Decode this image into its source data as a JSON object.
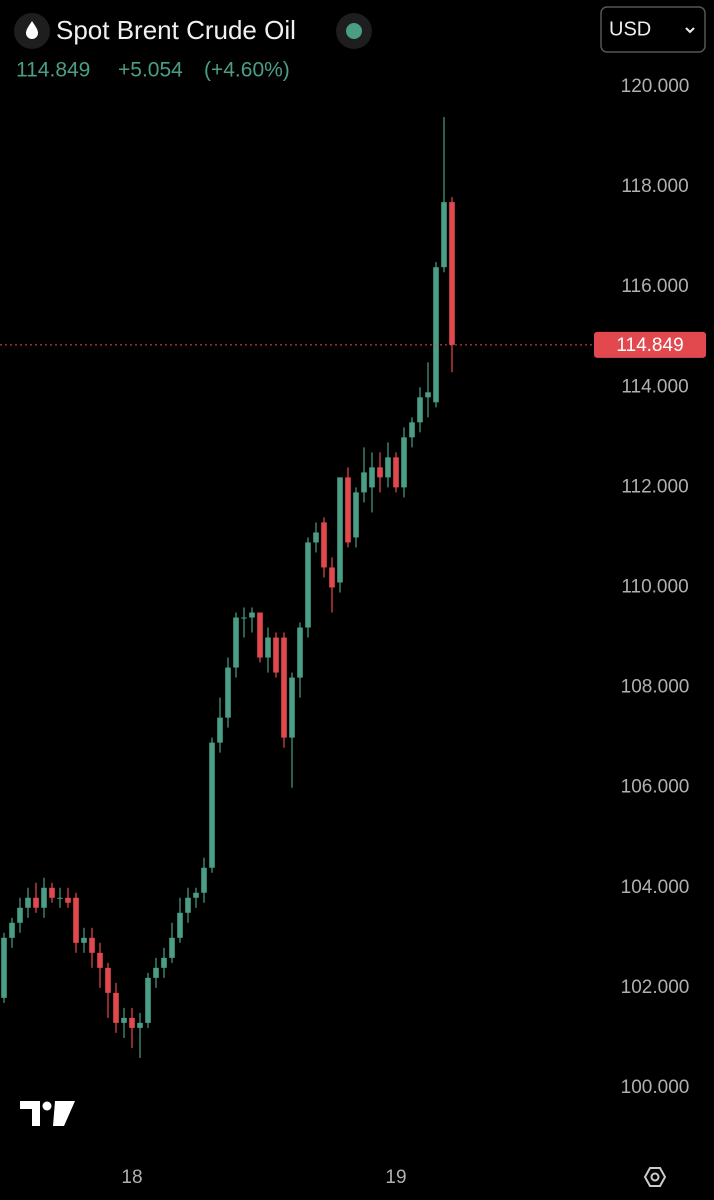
{
  "chart_data": {
    "type": "candlestick",
    "title": "Spot Brent Crude Oil",
    "price": 114.849,
    "change": "+5.054",
    "change_pct": "(+4.60%)",
    "currency": "USD",
    "up_color": "#4a9e86",
    "down_color": "#e2494f",
    "categories": [
      null,
      null,
      null,
      null,
      null,
      null,
      null,
      null,
      null,
      null,
      null,
      null,
      null,
      null,
      null,
      null,
      "18",
      null,
      null,
      null,
      null,
      null,
      null,
      null,
      null,
      null,
      null,
      null,
      null,
      null,
      null,
      null,
      null,
      null,
      null,
      null,
      null,
      null,
      null,
      null,
      null,
      null,
      null,
      null,
      null,
      null,
      null,
      null,
      null,
      "19",
      null,
      null,
      null,
      null,
      null,
      null,
      null
    ],
    "open": [
      101.8,
      103.0,
      103.3,
      103.6,
      103.8,
      103.6,
      104.0,
      103.8,
      103.8,
      103.8,
      102.9,
      103.0,
      102.7,
      102.4,
      101.9,
      101.3,
      101.4,
      101.2,
      101.3,
      102.2,
      102.4,
      102.6,
      103.0,
      103.5,
      103.8,
      103.9,
      104.4,
      106.9,
      107.4,
      108.4,
      109.4,
      109.4,
      109.5,
      108.6,
      109.0,
      109.0,
      107.0,
      108.2,
      109.2,
      110.9,
      111.3,
      110.4,
      110.1,
      112.2,
      111.0,
      111.9,
      112.0,
      112.4,
      112.2,
      112.6,
      112.0,
      113.0,
      113.3,
      113.8,
      113.7,
      116.4,
      117.7
    ],
    "high": [
      103.1,
      103.4,
      103.8,
      104.0,
      104.1,
      104.2,
      104.1,
      104.0,
      104.0,
      103.9,
      103.2,
      103.2,
      102.9,
      102.5,
      102.1,
      101.6,
      101.6,
      101.5,
      102.3,
      102.6,
      102.8,
      103.3,
      103.8,
      104.0,
      104.0,
      104.6,
      107.0,
      107.8,
      108.6,
      109.5,
      109.6,
      109.6,
      109.5,
      109.2,
      109.1,
      109.1,
      108.3,
      109.3,
      111.0,
      111.3,
      111.4,
      110.6,
      112.2,
      112.4,
      112.0,
      112.8,
      112.7,
      112.7,
      112.9,
      112.7,
      113.2,
      113.4,
      114.0,
      114.5,
      116.5,
      119.4,
      117.8
    ],
    "low": [
      101.7,
      102.8,
      103.1,
      103.4,
      103.5,
      103.4,
      103.7,
      103.6,
      103.6,
      102.7,
      102.7,
      102.4,
      102.0,
      101.4,
      101.1,
      101.0,
      100.8,
      100.6,
      101.2,
      102.0,
      102.2,
      102.5,
      102.9,
      103.3,
      103.6,
      103.7,
      104.3,
      106.7,
      107.2,
      108.2,
      109.0,
      109.1,
      108.5,
      108.3,
      108.2,
      106.8,
      106.0,
      107.8,
      109.0,
      110.7,
      110.2,
      109.5,
      109.9,
      110.8,
      110.8,
      111.7,
      111.5,
      111.9,
      112.0,
      111.9,
      111.8,
      112.8,
      113.1,
      113.4,
      113.6,
      116.3,
      114.3
    ],
    "close": [
      103.0,
      103.3,
      103.6,
      103.8,
      103.6,
      104.0,
      103.8,
      103.8,
      103.7,
      102.9,
      103.0,
      102.7,
      102.4,
      101.9,
      101.3,
      101.4,
      101.2,
      101.3,
      102.2,
      102.4,
      102.6,
      103.0,
      103.5,
      103.8,
      103.9,
      104.4,
      106.9,
      107.4,
      108.4,
      109.4,
      109.4,
      109.5,
      108.6,
      109.0,
      108.3,
      107.0,
      108.2,
      109.2,
      110.9,
      111.1,
      110.4,
      110.0,
      112.2,
      110.9,
      111.9,
      112.3,
      112.4,
      112.2,
      112.6,
      112.0,
      113.0,
      113.3,
      113.8,
      113.9,
      116.4,
      117.7,
      114.849
    ],
    "ylim": [
      98.96,
      120.54
    ],
    "yticks": [
      {
        "value": 100,
        "label": "100.000"
      },
      {
        "value": 102,
        "label": "102.000"
      },
      {
        "value": 104,
        "label": "104.000"
      },
      {
        "value": 106,
        "label": "106.000"
      },
      {
        "value": 108,
        "label": "108.000"
      },
      {
        "value": 110,
        "label": "110.000"
      },
      {
        "value": 112,
        "label": "112.000"
      },
      {
        "value": 114,
        "label": "114.000"
      },
      {
        "value": 116,
        "label": "116.000"
      },
      {
        "value": 118,
        "label": "118.000"
      },
      {
        "value": 120,
        "label": "120.000"
      }
    ]
  }
}
